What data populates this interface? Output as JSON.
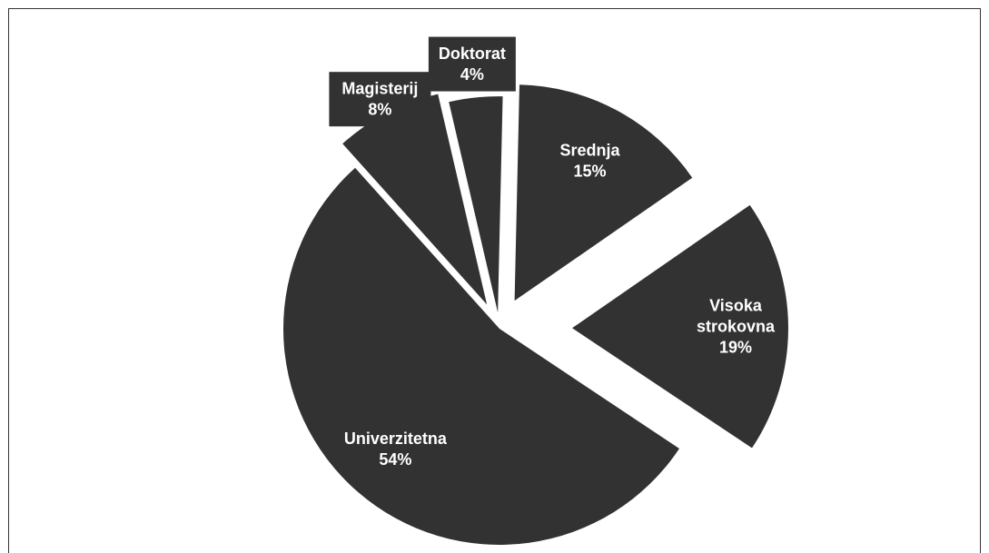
{
  "chart_data": {
    "type": "pie",
    "exploded": true,
    "colors": {
      "slice": "#323232",
      "label_text": "#ffffff",
      "background": "#ffffff",
      "frame": "#333333"
    },
    "slices": [
      {
        "name": "Srednja",
        "value": 15,
        "label_lines": [
          "Srednja",
          "15%"
        ]
      },
      {
        "name": "Visoka strokovna",
        "value": 19,
        "label_lines": [
          "Visoka",
          "strokovna",
          "19%"
        ]
      },
      {
        "name": "Univerzitetna",
        "value": 54,
        "label_lines": [
          "Univerzitetna",
          "54%"
        ]
      },
      {
        "name": "Magisterij",
        "value": 8,
        "label_lines": [
          "Magisterij",
          "8%"
        ]
      },
      {
        "name": "Doktorat",
        "value": 4,
        "label_lines": [
          "Doktorat",
          "4%"
        ]
      }
    ]
  }
}
